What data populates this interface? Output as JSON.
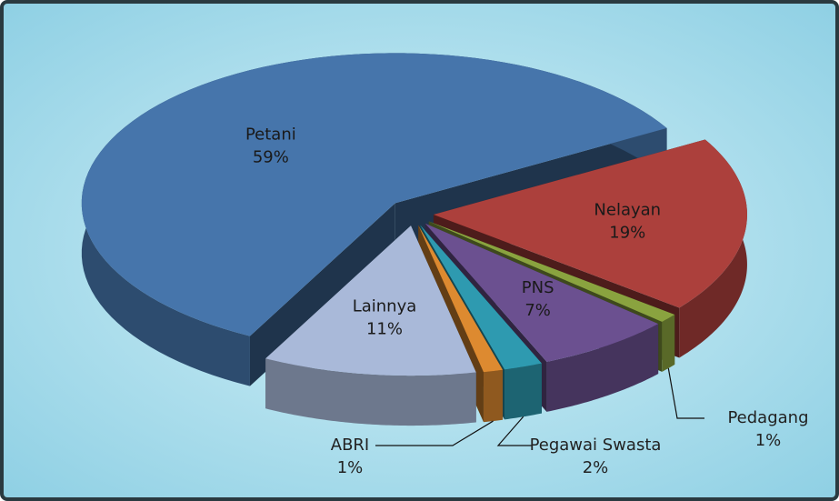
{
  "chart_data": {
    "type": "pie",
    "categories": [
      "Petani",
      "Nelayan",
      "Pedagang",
      "PNS",
      "Pegawai Swasta",
      "ABRI",
      "Lainnya"
    ],
    "values": [
      59,
      19,
      1,
      7,
      2,
      1,
      11
    ],
    "value_labels": [
      "59%",
      "19%",
      "1%",
      "7%",
      "2%",
      "1%",
      "11%"
    ],
    "colors": [
      "#4675ab",
      "#ac403c",
      "#8aa33f",
      "#6b5090",
      "#2e9ab0",
      "#dd8a30",
      "#a9b9d9"
    ]
  }
}
